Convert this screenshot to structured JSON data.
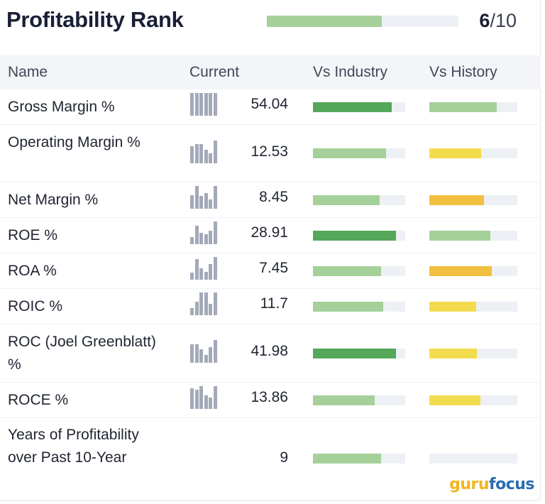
{
  "header": {
    "title": "Profitability Rank",
    "rank_value": "6",
    "rank_max": "/10",
    "rank_fill_fraction": 0.6,
    "rank_color": "#a5d09a"
  },
  "columns": {
    "name": "Name",
    "current": "Current",
    "vs_industry": "Vs Industry",
    "vs_history": "Vs History"
  },
  "colors": {
    "dark_green": "#55a759",
    "light_green": "#a5d09a",
    "yellow": "#f2dc4e",
    "orange": "#f2bf3f",
    "track": "#edf0f4",
    "spark": "#a3a9b8"
  },
  "rows": [
    {
      "name": "Gross Margin %",
      "value": "54.04",
      "industry": 0.85,
      "industry_color": "#55a759",
      "history": 0.77,
      "history_color": "#a5d09a",
      "spark": [
        1,
        1,
        1,
        1,
        1,
        1
      ]
    },
    {
      "name": "Operating Margin %",
      "value": "12.53",
      "industry": 0.79,
      "industry_color": "#a5d09a",
      "history": 0.59,
      "history_color": "#f2dc4e",
      "spark": [
        0.75,
        0.85,
        0.85,
        0.6,
        0.45,
        1
      ]
    },
    {
      "name": "Net Margin %",
      "value": "8.45",
      "industry": 0.72,
      "industry_color": "#a5d09a",
      "history": 0.62,
      "history_color": "#f2bf3f",
      "spark": [
        0.6,
        1,
        0.55,
        0.7,
        0.4,
        1
      ]
    },
    {
      "name": "ROE %",
      "value": "28.91",
      "industry": 0.9,
      "industry_color": "#55a759",
      "history": 0.69,
      "history_color": "#a5d09a",
      "spark": [
        0.3,
        0.8,
        0.5,
        0.45,
        0.6,
        1
      ]
    },
    {
      "name": "ROA %",
      "value": "7.45",
      "industry": 0.74,
      "industry_color": "#a5d09a",
      "history": 0.71,
      "history_color": "#f2bf3f",
      "spark": [
        0.3,
        0.9,
        0.5,
        0.35,
        0.7,
        1
      ]
    },
    {
      "name": "ROIC %",
      "value": "11.7",
      "industry": 0.76,
      "industry_color": "#a5d09a",
      "history": 0.53,
      "history_color": "#f2dc4e",
      "spark": [
        0.3,
        0.6,
        1,
        1,
        0.5,
        1
      ]
    },
    {
      "name": "ROC (Joel Greenblatt) %",
      "value": "41.98",
      "industry": 0.9,
      "industry_color": "#55a759",
      "history": 0.54,
      "history_color": "#f2dc4e",
      "spark": [
        0.8,
        0.8,
        0.6,
        0.35,
        0.7,
        1
      ]
    },
    {
      "name": "ROCE %",
      "value": "13.86",
      "industry": 0.67,
      "industry_color": "#a5d09a",
      "history": 0.58,
      "history_color": "#f2dc4e",
      "spark": [
        0.9,
        0.85,
        1,
        0.6,
        0.5,
        1
      ]
    },
    {
      "name": "Years of Profitability over Past 10-Year",
      "value": "9",
      "industry": 0.74,
      "industry_color": "#a5d09a",
      "history": 0,
      "history_color": "#a5d09a",
      "spark": []
    }
  ],
  "logo": {
    "part1": "guru",
    "part2": "focus"
  }
}
